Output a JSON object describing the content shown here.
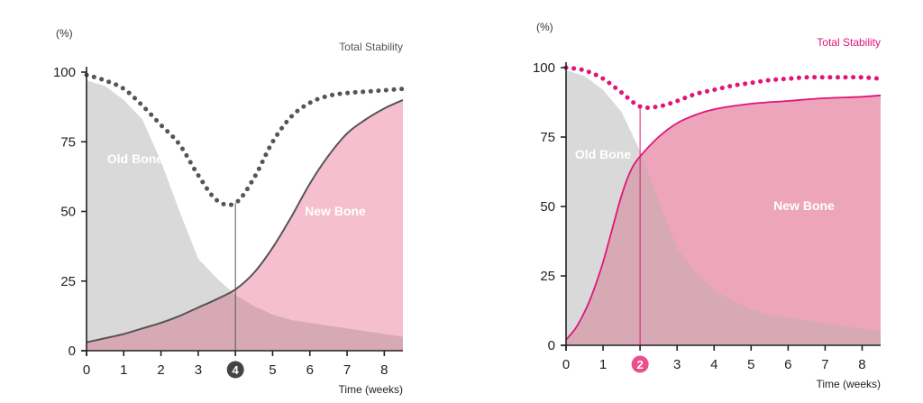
{
  "colors": {
    "old_bone_fill": "#d9d9d9",
    "new_bone_fill_left": "#f5bfcf",
    "new_bone_fill_right": "#eda5bb",
    "overlap_fill": "#d7a9b5",
    "stability_left": "#555555",
    "stability_right": "#e0157a",
    "new_bone_line_left": "#555555",
    "new_bone_line_right": "#e0157a",
    "badge_left": "#444444",
    "badge_right": "#ea4f8c",
    "axis": "#222222"
  },
  "chart_data": [
    {
      "type": "area",
      "y_unit_label": "(%)",
      "xlabel": "Time (weeks)",
      "x_ticks": [
        0,
        1,
        2,
        3,
        4,
        5,
        6,
        7,
        8
      ],
      "y_ticks": [
        0,
        25,
        50,
        75,
        100
      ],
      "xlim": [
        0,
        8.5
      ],
      "ylim": [
        0,
        100
      ],
      "marker_week": 4,
      "marker_label": "4",
      "region_labels": {
        "old_bone": "Old Bone",
        "new_bone": "New Bone"
      },
      "series": [
        {
          "name": "Old Bone",
          "x": [
            0,
            0.5,
            1,
            1.5,
            2,
            2.5,
            3,
            3.5,
            4,
            4.5,
            5,
            5.5,
            6,
            6.5,
            7,
            7.5,
            8,
            8.5
          ],
          "values": [
            97,
            95,
            90,
            83,
            68,
            50,
            33,
            26,
            20,
            16,
            13,
            11,
            10,
            9,
            8,
            7,
            6,
            5
          ]
        },
        {
          "name": "New Bone",
          "x": [
            0,
            0.5,
            1,
            1.5,
            2,
            2.5,
            3,
            3.5,
            4,
            4.5,
            5,
            5.5,
            6,
            6.5,
            7,
            7.5,
            8,
            8.5
          ],
          "values": [
            3,
            4.5,
            6,
            8,
            10,
            12.5,
            15.5,
            18.5,
            22,
            28,
            37,
            48,
            60,
            70,
            78,
            83,
            87,
            90
          ]
        },
        {
          "name": "Total Stability",
          "x": [
            0,
            0.5,
            1,
            1.5,
            2,
            2.5,
            3,
            3.5,
            4,
            4.5,
            5,
            5.5,
            6,
            6.5,
            7,
            7.5,
            8,
            8.5
          ],
          "values": [
            99,
            97,
            94,
            88,
            81,
            74,
            63,
            54,
            53,
            62,
            75,
            84,
            89,
            91.5,
            92.5,
            93,
            93.5,
            94
          ]
        }
      ]
    },
    {
      "type": "area",
      "y_unit_label": "(%)",
      "xlabel": "Time (weeks)",
      "x_ticks": [
        0,
        1,
        2,
        3,
        4,
        5,
        6,
        7,
        8
      ],
      "y_ticks": [
        0,
        25,
        50,
        75,
        100
      ],
      "xlim": [
        0,
        8.5
      ],
      "ylim": [
        0,
        100
      ],
      "marker_week": 2,
      "marker_label": "2",
      "region_labels": {
        "old_bone": "Old Bone",
        "new_bone": "New Bone"
      },
      "series": [
        {
          "name": "Old Bone",
          "x": [
            0,
            0.5,
            1,
            1.5,
            2,
            2.5,
            3,
            3.5,
            4,
            4.5,
            5,
            5.5,
            6,
            6.5,
            7,
            7.5,
            8,
            8.5
          ],
          "values": [
            99,
            97,
            92,
            84,
            70,
            52,
            35,
            26,
            20,
            16,
            13,
            11,
            10,
            9,
            8,
            7,
            6,
            5
          ]
        },
        {
          "name": "New Bone",
          "x": [
            0,
            0.25,
            0.5,
            0.75,
            1,
            1.25,
            1.5,
            1.75,
            2,
            2.5,
            3,
            3.5,
            4,
            5,
            6,
            7,
            8,
            8.5
          ],
          "values": [
            2,
            6,
            12,
            20,
            30,
            42,
            54,
            63,
            68,
            75,
            80,
            83,
            85,
            87,
            88,
            89,
            89.5,
            90
          ]
        },
        {
          "name": "Total Stability",
          "x": [
            0,
            0.5,
            1,
            1.5,
            2,
            2.5,
            3,
            3.5,
            4,
            4.5,
            5,
            5.5,
            6,
            6.5,
            7,
            7.5,
            8,
            8.5
          ],
          "values": [
            100,
            99,
            96,
            91,
            86,
            86,
            88,
            90.5,
            92,
            93.5,
            94.5,
            95.5,
            96,
            96.5,
            96.5,
            96.5,
            96.5,
            96
          ]
        }
      ]
    }
  ]
}
